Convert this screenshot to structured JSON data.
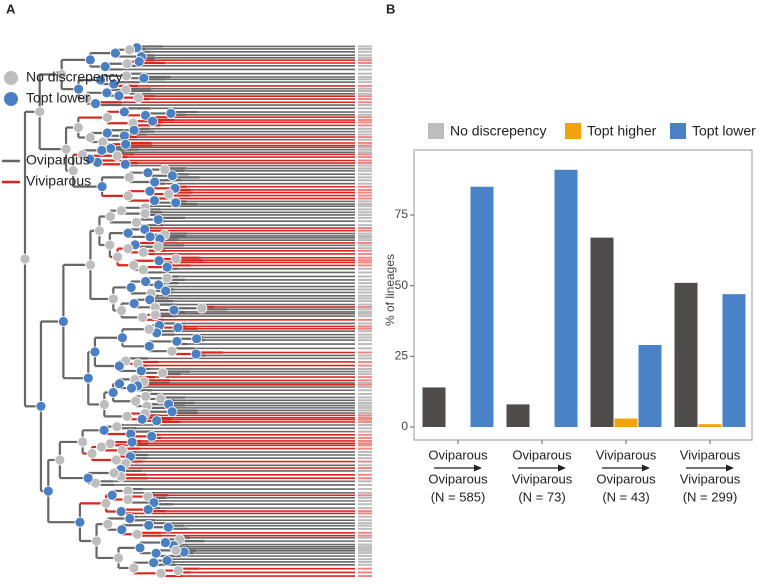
{
  "panel_labels": [
    "A",
    "B"
  ],
  "tree_legend": {
    "nodes": [
      {
        "label": "No discrepency",
        "color": "#bdbdbd"
      },
      {
        "label": "Topt lower",
        "color": "#4a7fc4"
      }
    ],
    "branches": [
      {
        "label": "Oviparous",
        "color": "#666666"
      },
      {
        "label": "Viviparous",
        "color": "#d7261e"
      }
    ]
  },
  "chart_data": {
    "type": "bar",
    "y_label": "% of lineages",
    "categories": [
      [
        "Oviparous",
        "Oviparous",
        "(N = 585)"
      ],
      [
        "Oviparous",
        "Viviparous",
        "(N = 73)"
      ],
      [
        "Viviparous",
        "Oviparous",
        "(N = 43)"
      ],
      [
        "Viviparous",
        "Viviparous",
        "(N = 299)"
      ]
    ],
    "series": [
      {
        "name": "No discrepency",
        "color": "#4f4b4b",
        "legend_color": "#bdbdbd",
        "values": [
          14,
          8,
          67,
          51
        ]
      },
      {
        "name": "Topt higher",
        "color": "#f2a20c",
        "legend_color": "#f2a20c",
        "values": [
          0,
          0,
          3,
          1
        ]
      },
      {
        "name": "Topt lower",
        "color": "#4a82c7",
        "legend_color": "#4a82c7",
        "values": [
          85,
          91,
          29,
          47
        ]
      }
    ],
    "ylim": [
      -4.6,
      98
    ],
    "yticks": [
      0,
      25,
      50,
      75
    ],
    "grid": false
  }
}
